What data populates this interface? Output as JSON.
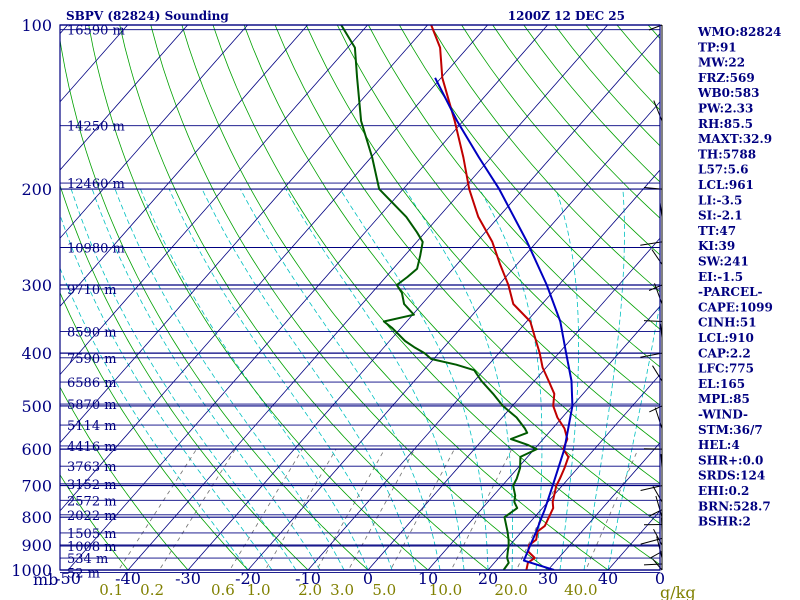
{
  "chart_data": {
    "type": "skew-t log-p sounding",
    "station_label": "SBPV (82824) Sounding",
    "time_label": "1200Z 12 DEC 25",
    "pressure_unit": "mb",
    "mixing_ratio_unit": "g/kg",
    "pressure_range_mb": [
      1000,
      100
    ],
    "temperature_range_c": [
      -50,
      40
    ],
    "pressure_ticks": [
      "100",
      "200",
      "300",
      "400",
      "500",
      "600",
      "700",
      "800",
      "900",
      "1000"
    ],
    "temperature_ticks": [
      "-50",
      "-40",
      "-30",
      "-20",
      "-10",
      "0",
      "10",
      "20",
      "30",
      "40",
      "0"
    ],
    "mixing_ratio_labels": [
      "0.1",
      "0.2",
      "0.6",
      "1.0",
      "2.0",
      "3.0",
      "5.0",
      "10.0",
      "20.0",
      "40.0"
    ],
    "height_levels": [
      {
        "p": 1011,
        "label": "52 m"
      },
      {
        "p": 951,
        "label": "534 m"
      },
      {
        "p": 904,
        "label": "1008 m"
      },
      {
        "p": 855,
        "label": "1505 m"
      },
      {
        "p": 792,
        "label": "2022 m"
      },
      {
        "p": 745,
        "label": "2572 m"
      },
      {
        "p": 695,
        "label": "3152 m"
      },
      {
        "p": 645,
        "label": "3763 m"
      },
      {
        "p": 592,
        "label": "4416 m"
      },
      {
        "p": 542,
        "label": "5114 m"
      },
      {
        "p": 496,
        "label": "5870 m"
      },
      {
        "p": 452,
        "label": "6586 m"
      },
      {
        "p": 408,
        "label": "7590 m"
      },
      {
        "p": 365,
        "label": "8590 m"
      },
      {
        "p": 305,
        "label": "9710 m"
      },
      {
        "p": 256,
        "label": "10980 m"
      },
      {
        "p": 195,
        "label": "12460 m"
      },
      {
        "p": 153,
        "label": "14250 m"
      },
      {
        "p": 102,
        "label": "16590 m"
      }
    ],
    "series": [
      {
        "name": "temperature",
        "color": "#c00000",
        "points": [
          [
            1000,
            26.4
          ],
          [
            970,
            25.6
          ],
          [
            950,
            26.0
          ],
          [
            925,
            24.0
          ],
          [
            900,
            23.2
          ],
          [
            880,
            23.6
          ],
          [
            850,
            22.6
          ],
          [
            830,
            23.0
          ],
          [
            800,
            22.4
          ],
          [
            770,
            21.8
          ],
          [
            750,
            20.8
          ],
          [
            700,
            19.0
          ],
          [
            680,
            18.6
          ],
          [
            650,
            17.8
          ],
          [
            620,
            16.8
          ],
          [
            600,
            14.8
          ],
          [
            575,
            14.0
          ],
          [
            550,
            12.0
          ],
          [
            525,
            9.2
          ],
          [
            500,
            6.8
          ],
          [
            475,
            5.2
          ],
          [
            450,
            2.4
          ],
          [
            425,
            -0.6
          ],
          [
            400,
            -3.2
          ],
          [
            375,
            -6.2
          ],
          [
            350,
            -9.4
          ],
          [
            325,
            -14.8
          ],
          [
            300,
            -18.4
          ],
          [
            275,
            -22.8
          ],
          [
            250,
            -27.4
          ],
          [
            225,
            -33.4
          ],
          [
            200,
            -39.0
          ],
          [
            175,
            -44.6
          ],
          [
            150,
            -51.4
          ],
          [
            125,
            -59.8
          ],
          [
            110,
            -64.6
          ],
          [
            100,
            -69.4
          ]
        ]
      },
      {
        "name": "dewpoint",
        "color": "#005a00",
        "points": [
          [
            1000,
            22.6
          ],
          [
            970,
            22.4
          ],
          [
            950,
            21.4
          ],
          [
            925,
            20.6
          ],
          [
            900,
            19.8
          ],
          [
            880,
            19.0
          ],
          [
            850,
            17.6
          ],
          [
            800,
            15.0
          ],
          [
            770,
            15.8
          ],
          [
            750,
            14.4
          ],
          [
            730,
            13.6
          ],
          [
            700,
            11.8
          ],
          [
            680,
            11.4
          ],
          [
            650,
            10.4
          ],
          [
            620,
            8.8
          ],
          [
            600,
            10.4
          ],
          [
            590,
            8.4
          ],
          [
            575,
            4.6
          ],
          [
            560,
            6.4
          ],
          [
            550,
            5.4
          ],
          [
            525,
            2.4
          ],
          [
            500,
            -1.6
          ],
          [
            475,
            -5.0
          ],
          [
            450,
            -8.8
          ],
          [
            430,
            -11.6
          ],
          [
            420,
            -15.4
          ],
          [
            410,
            -20.4
          ],
          [
            400,
            -22.4
          ],
          [
            390,
            -25.0
          ],
          [
            380,
            -27.4
          ],
          [
            360,
            -31.4
          ],
          [
            350,
            -33.8
          ],
          [
            340,
            -29.8
          ],
          [
            325,
            -33.0
          ],
          [
            310,
            -35.0
          ],
          [
            300,
            -37.0
          ],
          [
            290,
            -36.4
          ],
          [
            280,
            -36.0
          ],
          [
            265,
            -37.4
          ],
          [
            250,
            -39.0
          ],
          [
            240,
            -41.4
          ],
          [
            225,
            -45.4
          ],
          [
            200,
            -54.0
          ],
          [
            175,
            -59.8
          ],
          [
            150,
            -67.0
          ],
          [
            125,
            -74.0
          ],
          [
            110,
            -78.8
          ],
          [
            100,
            -84.4
          ]
        ]
      },
      {
        "name": "parcel",
        "color": "#0000c0",
        "points": [
          [
            1000,
            31.0
          ],
          [
            961,
            24.6
          ],
          [
            930,
            24.0
          ],
          [
            900,
            23.4
          ],
          [
            850,
            22.4
          ],
          [
            800,
            21.2
          ],
          [
            775,
            20.6
          ],
          [
            700,
            18.4
          ],
          [
            600,
            15.0
          ],
          [
            500,
            10.0
          ],
          [
            450,
            6.2
          ],
          [
            400,
            1.2
          ],
          [
            350,
            -4.4
          ],
          [
            300,
            -12.0
          ],
          [
            250,
            -21.6
          ],
          [
            200,
            -34.0
          ],
          [
            175,
            -42.0
          ],
          [
            150,
            -51.0
          ],
          [
            125,
            -61.0
          ]
        ]
      }
    ],
    "wind_barbs_pressure_mb": [
      1000,
      975,
      950,
      925,
      900,
      875,
      850,
      825,
      800,
      775,
      750,
      700,
      650,
      600,
      550,
      500,
      450,
      400,
      375,
      350,
      325,
      300,
      275,
      250,
      225,
      200,
      150,
      100
    ],
    "indices": [
      "WMO:82824",
      "TP:91",
      "MW:22",
      "FRZ:569",
      "WB0:583",
      "PW:2.33",
      "RH:85.5",
      "MAXT:32.9",
      "TH:5788",
      "L57:5.6",
      "LCL:961",
      "LI:-3.5",
      "SI:-2.1",
      "TT:47",
      "KI:39",
      "SW:241",
      "EI:-1.5",
      "-PARCEL-",
      "CAPE:1099",
      "CINH:51",
      "LCL:910",
      "CAP:2.2",
      "LFC:775",
      "EL:165",
      "MPL:85",
      "-WIND-",
      "STM:36/7",
      "HEL:4",
      "SHR+:0.0",
      "SRDS:124",
      "EHI:0.2",
      "BRN:528.7",
      "BSHR:2"
    ]
  },
  "colors": {
    "frame": "#000080",
    "isotherm": "#000080",
    "dry_adiabat": "#00a000",
    "moist_adiabat": "#00c0c0",
    "mixing_ratio": "#707070",
    "header_text": "#000080",
    "mixing_ratio_text": "#808000"
  }
}
